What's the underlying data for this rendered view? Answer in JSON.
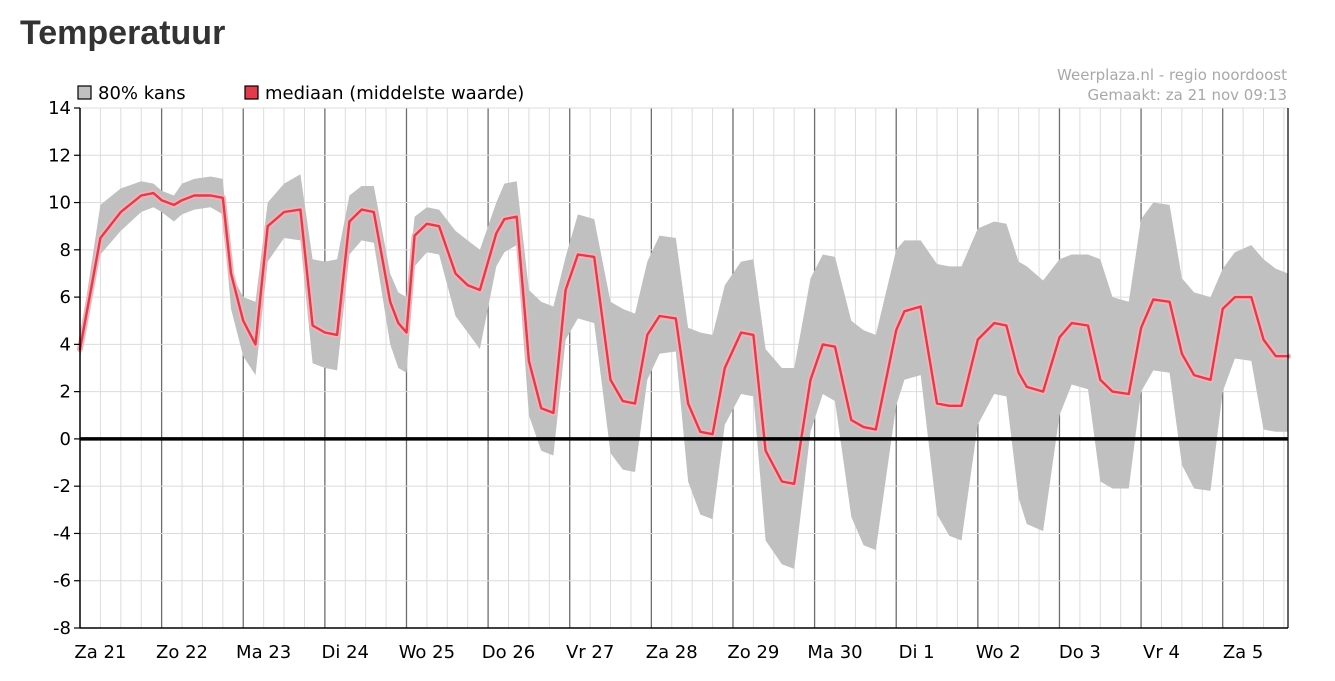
{
  "page": {
    "heading": "Temperatuur"
  },
  "chart_data": {
    "type": "area",
    "title": "",
    "xlabel": "",
    "ylabel": "",
    "ylim": [
      -8,
      14
    ],
    "yticks": [
      14,
      12,
      10,
      8,
      6,
      4,
      2,
      0,
      -2,
      -4,
      -6,
      -8
    ],
    "grid": true,
    "legend": {
      "placement": "top-left",
      "items": [
        {
          "label": "80% kans",
          "color": "#c0c0c0"
        },
        {
          "label": "mediaan (middelste waarde)",
          "color": "#e23b4a"
        }
      ]
    },
    "source": "Weerplaza.nl - regio noordoost",
    "made": "Gemaakt: za 21 nov 09:13",
    "categories": [
      "Za 21",
      "Zo 22",
      "Ma 23",
      "Di 24",
      "Wo 25",
      "Do 26",
      "Vr 27",
      "Za 28",
      "Zo 29",
      "Ma 30",
      "Di 1",
      "Wo 2",
      "Do 3",
      "Vr 4",
      "Za 5"
    ],
    "x_unit": "days since Za 21 00:00",
    "x_range": [
      0,
      14.8
    ],
    "colors": {
      "band": "#c0c0c0",
      "median": "#e23b4a",
      "zero_line": "#000000"
    },
    "series": [
      {
        "name": "mediaan (middelste waarde)",
        "x": [
          0,
          0.25,
          0.5,
          0.75,
          0.9,
          1.0,
          1.15,
          1.25,
          1.4,
          1.6,
          1.75,
          1.85,
          2.0,
          2.15,
          2.3,
          2.5,
          2.7,
          2.85,
          3.0,
          3.15,
          3.3,
          3.45,
          3.6,
          3.8,
          3.9,
          4.0,
          4.1,
          4.25,
          4.4,
          4.6,
          4.75,
          4.9,
          5.1,
          5.2,
          5.35,
          5.5,
          5.65,
          5.8,
          5.95,
          6.1,
          6.3,
          6.5,
          6.65,
          6.8,
          6.95,
          7.1,
          7.3,
          7.45,
          7.6,
          7.75,
          7.9,
          8.1,
          8.25,
          8.4,
          8.6,
          8.75,
          8.95,
          9.1,
          9.25,
          9.45,
          9.6,
          9.75,
          10.0,
          10.1,
          10.3,
          10.5,
          10.65,
          10.8,
          11.0,
          11.2,
          11.35,
          11.5,
          11.6,
          11.8,
          12.0,
          12.15,
          12.35,
          12.5,
          12.65,
          12.85,
          13.0,
          13.15,
          13.35,
          13.5,
          13.65,
          13.85,
          14.0,
          14.15,
          14.35,
          14.5,
          14.65,
          14.8
        ],
        "values": [
          3.8,
          8.5,
          9.6,
          10.3,
          10.4,
          10.1,
          9.9,
          10.1,
          10.3,
          10.3,
          10.2,
          7.0,
          5.0,
          4.0,
          9.0,
          9.6,
          9.7,
          4.8,
          4.5,
          4.4,
          9.2,
          9.7,
          9.6,
          5.8,
          4.9,
          4.5,
          8.6,
          9.1,
          9.0,
          7.0,
          6.5,
          6.3,
          8.7,
          9.3,
          9.4,
          3.3,
          1.3,
          1.1,
          6.3,
          7.8,
          7.7,
          2.5,
          1.6,
          1.5,
          4.4,
          5.2,
          5.1,
          1.5,
          0.3,
          0.2,
          3.0,
          4.5,
          4.4,
          -0.5,
          -1.8,
          -1.9,
          2.5,
          4.0,
          3.9,
          0.8,
          0.5,
          0.4,
          4.6,
          5.4,
          5.6,
          1.5,
          1.4,
          1.4,
          4.2,
          4.9,
          4.8,
          2.8,
          2.2,
          2.0,
          4.3,
          4.9,
          4.8,
          2.5,
          2.0,
          1.9,
          4.7,
          5.9,
          5.8,
          3.6,
          2.7,
          2.5,
          5.5,
          6.0,
          6.0,
          4.2,
          3.5,
          3.5
        ]
      },
      {
        "name": "80% kans",
        "x": [
          0,
          0.25,
          0.5,
          0.75,
          0.9,
          1.0,
          1.15,
          1.25,
          1.4,
          1.6,
          1.75,
          1.85,
          2.0,
          2.15,
          2.3,
          2.5,
          2.7,
          2.85,
          3.0,
          3.15,
          3.3,
          3.45,
          3.6,
          3.8,
          3.9,
          4.0,
          4.1,
          4.25,
          4.4,
          4.6,
          4.75,
          4.9,
          5.1,
          5.2,
          5.35,
          5.5,
          5.65,
          5.8,
          5.95,
          6.1,
          6.3,
          6.5,
          6.65,
          6.8,
          6.95,
          7.1,
          7.3,
          7.45,
          7.6,
          7.75,
          7.9,
          8.1,
          8.25,
          8.4,
          8.6,
          8.75,
          8.95,
          9.1,
          9.25,
          9.45,
          9.6,
          9.75,
          10.0,
          10.1,
          10.3,
          10.5,
          10.65,
          10.8,
          11.0,
          11.2,
          11.35,
          11.5,
          11.6,
          11.8,
          12.0,
          12.15,
          12.35,
          12.5,
          12.65,
          12.85,
          13.0,
          13.15,
          13.35,
          13.5,
          13.65,
          13.85,
          14.0,
          14.15,
          14.35,
          14.5,
          14.65,
          14.8
        ],
        "upper": [
          4.2,
          9.9,
          10.6,
          10.9,
          10.8,
          10.5,
          10.3,
          10.8,
          11.0,
          11.1,
          11.0,
          7.0,
          6.0,
          5.8,
          10.0,
          10.8,
          11.2,
          7.6,
          7.5,
          7.6,
          10.3,
          10.7,
          10.7,
          7.0,
          6.2,
          6.0,
          9.4,
          9.8,
          9.7,
          8.8,
          8.4,
          8.0,
          10.0,
          10.8,
          10.9,
          6.3,
          5.8,
          5.6,
          7.7,
          9.5,
          9.3,
          5.8,
          5.5,
          5.3,
          7.5,
          8.6,
          8.5,
          4.7,
          4.5,
          4.4,
          6.5,
          7.5,
          7.6,
          3.8,
          3.0,
          3.0,
          6.8,
          7.8,
          7.7,
          5.0,
          4.6,
          4.4,
          8.0,
          8.4,
          8.4,
          7.4,
          7.3,
          7.3,
          8.9,
          9.2,
          9.1,
          7.5,
          7.3,
          6.7,
          7.6,
          7.8,
          7.8,
          7.6,
          6.0,
          5.8,
          9.3,
          10.0,
          9.9,
          6.8,
          6.2,
          6.0,
          7.2,
          7.9,
          8.2,
          7.6,
          7.2,
          7.0
        ],
        "lower": [
          3.4,
          7.8,
          8.8,
          9.6,
          9.8,
          9.6,
          9.2,
          9.5,
          9.7,
          9.8,
          9.5,
          5.5,
          3.5,
          2.7,
          7.5,
          8.5,
          8.4,
          3.2,
          3.0,
          2.9,
          7.8,
          8.4,
          8.3,
          4.0,
          3.0,
          2.8,
          7.3,
          7.9,
          7.8,
          5.2,
          4.5,
          3.8,
          7.3,
          7.9,
          8.2,
          1.0,
          -0.5,
          -0.7,
          4.2,
          5.1,
          4.9,
          -0.6,
          -1.3,
          -1.4,
          2.5,
          3.6,
          3.7,
          -1.8,
          -3.2,
          -3.4,
          0.6,
          1.9,
          1.8,
          -4.3,
          -5.3,
          -5.5,
          0.3,
          1.9,
          1.6,
          -3.3,
          -4.5,
          -4.7,
          1.4,
          2.5,
          2.7,
          -3.2,
          -4.1,
          -4.3,
          0.6,
          1.9,
          1.8,
          -2.5,
          -3.6,
          -3.9,
          1.0,
          2.3,
          2.1,
          -1.8,
          -2.1,
          -2.1,
          2.0,
          2.9,
          2.8,
          -1.1,
          -2.1,
          -2.2,
          2.0,
          3.4,
          3.3,
          0.4,
          0.3,
          0.3
        ]
      }
    ]
  }
}
